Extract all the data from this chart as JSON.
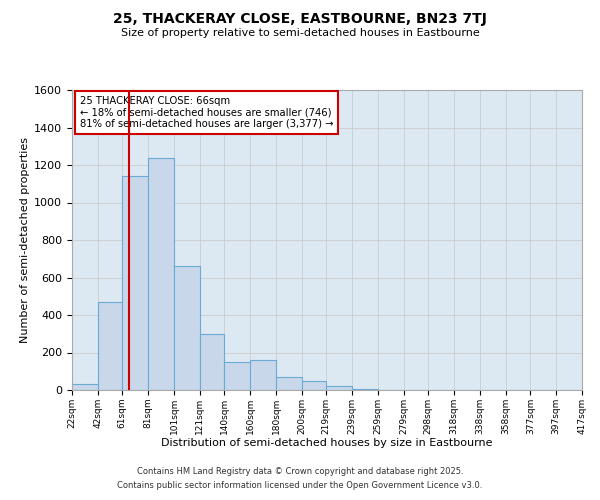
{
  "title": "25, THACKERAY CLOSE, EASTBOURNE, BN23 7TJ",
  "subtitle": "Size of property relative to semi-detached houses in Eastbourne",
  "xlabel": "Distribution of semi-detached houses by size in Eastbourne",
  "ylabel": "Number of semi-detached properties",
  "bin_edges": [
    22,
    42,
    61,
    81,
    101,
    121,
    140,
    160,
    180,
    200,
    219,
    239,
    259,
    279,
    298,
    318,
    338,
    358,
    377,
    397,
    417
  ],
  "bin_counts": [
    30,
    470,
    1140,
    1240,
    660,
    300,
    150,
    160,
    70,
    50,
    20,
    5,
    2,
    2,
    1,
    1,
    1,
    1,
    1,
    1
  ],
  "bar_facecolor": "#c8d8ea",
  "bar_edgecolor": "#6aaad4",
  "property_line_x": 66,
  "property_line_color": "#cc0000",
  "annotation_title": "25 THACKERAY CLOSE: 66sqm",
  "annotation_line1": "← 18% of semi-detached houses are smaller (746)",
  "annotation_line2": "81% of semi-detached houses are larger (3,377) →",
  "annotation_box_edgecolor": "#cc0000",
  "annotation_box_facecolor": "#ffffff",
  "ylim": [
    0,
    1600
  ],
  "yticks": [
    0,
    200,
    400,
    600,
    800,
    1000,
    1200,
    1400,
    1600
  ],
  "grid_color": "#cccccc",
  "bg_color": "#dce8f2",
  "footnote1": "Contains HM Land Registry data © Crown copyright and database right 2025.",
  "footnote2": "Contains public sector information licensed under the Open Government Licence v3.0.",
  "tick_labels": [
    "22sqm",
    "42sqm",
    "61sqm",
    "81sqm",
    "101sqm",
    "121sqm",
    "140sqm",
    "160sqm",
    "180sqm",
    "200sqm",
    "219sqm",
    "239sqm",
    "259sqm",
    "279sqm",
    "298sqm",
    "318sqm",
    "338sqm",
    "358sqm",
    "377sqm",
    "397sqm",
    "417sqm"
  ]
}
